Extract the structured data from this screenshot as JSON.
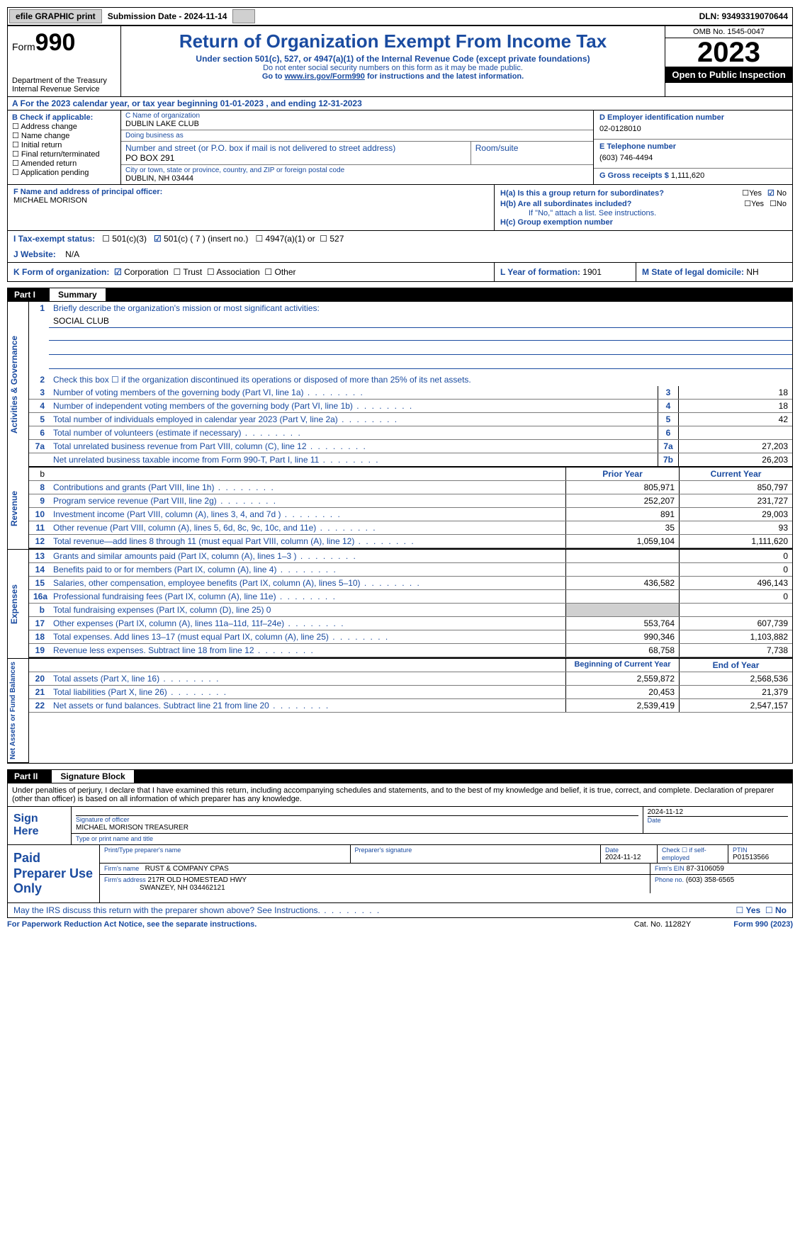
{
  "topbar": {
    "efile": "efile GRAPHIC print",
    "submission": "Submission Date - 2024-11-14",
    "dln": "DLN: 93493319070644"
  },
  "header": {
    "form_label": "Form",
    "form_num": "990",
    "dept": "Department of the Treasury Internal Revenue Service",
    "title": "Return of Organization Exempt From Income Tax",
    "subtitle": "Under section 501(c), 527, or 4947(a)(1) of the Internal Revenue Code (except private foundations)",
    "warn": "Do not enter social security numbers on this form as it may be made public.",
    "goto_pre": "Go to ",
    "goto_link": "www.irs.gov/Form990",
    "goto_post": " for instructions and the latest information.",
    "omb": "OMB No. 1545-0047",
    "year": "2023",
    "open": "Open to Public Inspection"
  },
  "row_a": "A For the 2023 calendar year, or tax year beginning 01-01-2023   , and ending 12-31-2023",
  "section_b": {
    "title": "B Check if applicable:",
    "items": [
      "Address change",
      "Name change",
      "Initial return",
      "Final return/terminated",
      "Amended return",
      "Application pending"
    ]
  },
  "section_c": {
    "name_lbl": "C Name of organization",
    "name": "DUBLIN LAKE CLUB",
    "dba_lbl": "Doing business as",
    "addr_lbl": "Number and street (or P.O. box if mail is not delivered to street address)",
    "room_lbl": "Room/suite",
    "addr": "PO BOX 291",
    "city_lbl": "City or town, state or province, country, and ZIP or foreign postal code",
    "city": "DUBLIN, NH  03444"
  },
  "section_d": {
    "ein_lbl": "D Employer identification number",
    "ein": "02-0128010",
    "tel_lbl": "E Telephone number",
    "tel": "(603) 746-4494",
    "gross_lbl": "G Gross receipts $",
    "gross": "1,111,620"
  },
  "section_f": {
    "lbl": "F  Name and address of principal officer:",
    "val": "MICHAEL MORISON"
  },
  "section_h": {
    "ha": "H(a)  Is this a group return for subordinates?",
    "hb": "H(b)  Are all subordinates included?",
    "hb_note": "If \"No,\" attach a list. See instructions.",
    "hc": "H(c)  Group exemption number"
  },
  "row_i": {
    "lbl": "I   Tax-exempt status:",
    "opts": [
      "501(c)(3)",
      "501(c) ( 7 ) (insert no.)",
      "4947(a)(1) or",
      "527"
    ]
  },
  "row_j": {
    "lbl": "J   Website:",
    "val": "N/A"
  },
  "row_k": {
    "lbl": "K Form of organization:",
    "opts": [
      "Corporation",
      "Trust",
      "Association",
      "Other"
    ],
    "l_lbl": "L Year of formation:",
    "l_val": "1901",
    "m_lbl": "M State of legal domicile:",
    "m_val": "NH"
  },
  "part1": {
    "num": "Part I",
    "title": "Summary"
  },
  "gov": {
    "l1": "Briefly describe the organization's mission or most significant activities:",
    "l1v": "SOCIAL CLUB",
    "l2": "Check this box ☐  if the organization discontinued its operations or disposed of more than 25% of its net assets.",
    "rows": [
      {
        "n": "3",
        "t": "Number of voting members of the governing body (Part VI, line 1a)",
        "b": "3",
        "v": "18"
      },
      {
        "n": "4",
        "t": "Number of independent voting members of the governing body (Part VI, line 1b)",
        "b": "4",
        "v": "18"
      },
      {
        "n": "5",
        "t": "Total number of individuals employed in calendar year 2023 (Part V, line 2a)",
        "b": "5",
        "v": "42"
      },
      {
        "n": "6",
        "t": "Total number of volunteers (estimate if necessary)",
        "b": "6",
        "v": ""
      },
      {
        "n": "7a",
        "t": "Total unrelated business revenue from Part VIII, column (C), line 12",
        "b": "7a",
        "v": "27,203"
      },
      {
        "n": "",
        "t": "Net unrelated business taxable income from Form 990-T, Part I, line 11",
        "b": "7b",
        "v": "26,203"
      }
    ]
  },
  "rev": {
    "hdr_py": "Prior Year",
    "hdr_cy": "Current Year",
    "rows": [
      {
        "n": "8",
        "t": "Contributions and grants (Part VIII, line 1h)",
        "py": "805,971",
        "cy": "850,797"
      },
      {
        "n": "9",
        "t": "Program service revenue (Part VIII, line 2g)",
        "py": "252,207",
        "cy": "231,727"
      },
      {
        "n": "10",
        "t": "Investment income (Part VIII, column (A), lines 3, 4, and 7d )",
        "py": "891",
        "cy": "29,003"
      },
      {
        "n": "11",
        "t": "Other revenue (Part VIII, column (A), lines 5, 6d, 8c, 9c, 10c, and 11e)",
        "py": "35",
        "cy": "93"
      },
      {
        "n": "12",
        "t": "Total revenue—add lines 8 through 11 (must equal Part VIII, column (A), line 12)",
        "py": "1,059,104",
        "cy": "1,111,620"
      }
    ]
  },
  "exp": {
    "rows": [
      {
        "n": "13",
        "t": "Grants and similar amounts paid (Part IX, column (A), lines 1–3 )",
        "py": "",
        "cy": "0"
      },
      {
        "n": "14",
        "t": "Benefits paid to or for members (Part IX, column (A), line 4)",
        "py": "",
        "cy": "0"
      },
      {
        "n": "15",
        "t": "Salaries, other compensation, employee benefits (Part IX, column (A), lines 5–10)",
        "py": "436,582",
        "cy": "496,143"
      },
      {
        "n": "16a",
        "t": "Professional fundraising fees (Part IX, column (A), line 11e)",
        "py": "",
        "cy": "0"
      },
      {
        "n": "b",
        "t": "Total fundraising expenses (Part IX, column (D), line 25) 0",
        "py": "",
        "cy": "",
        "shade": true
      },
      {
        "n": "17",
        "t": "Other expenses (Part IX, column (A), lines 11a–11d, 11f–24e)",
        "py": "553,764",
        "cy": "607,739"
      },
      {
        "n": "18",
        "t": "Total expenses. Add lines 13–17 (must equal Part IX, column (A), line 25)",
        "py": "990,346",
        "cy": "1,103,882"
      },
      {
        "n": "19",
        "t": "Revenue less expenses. Subtract line 18 from line 12",
        "py": "68,758",
        "cy": "7,738"
      }
    ]
  },
  "net": {
    "hdr_py": "Beginning of Current Year",
    "hdr_cy": "End of Year",
    "rows": [
      {
        "n": "20",
        "t": "Total assets (Part X, line 16)",
        "py": "2,559,872",
        "cy": "2,568,536"
      },
      {
        "n": "21",
        "t": "Total liabilities (Part X, line 26)",
        "py": "20,453",
        "cy": "21,379"
      },
      {
        "n": "22",
        "t": "Net assets or fund balances. Subtract line 21 from line 20",
        "py": "2,539,419",
        "cy": "2,547,157"
      }
    ]
  },
  "part2": {
    "num": "Part II",
    "title": "Signature Block"
  },
  "decl": "Under penalties of perjury, I declare that I have examined this return, including accompanying schedules and statements, and to the best of my knowledge and belief, it is true, correct, and complete. Declaration of preparer (other than officer) is based on all information of which preparer has any knowledge.",
  "sign": {
    "side": "Sign Here",
    "sig_lbl": "Signature of officer",
    "date_lbl": "Date",
    "date": "2024-11-12",
    "name": "MICHAEL MORISON  TREASURER",
    "name_lbl": "Type or print name and title"
  },
  "prep": {
    "side": "Paid Preparer Use Only",
    "r1": {
      "c1_lbl": "Print/Type preparer's name",
      "c2_lbl": "Preparer's signature",
      "c3_lbl": "Date",
      "c3": "2024-11-12",
      "c4_lbl": "Check ☐ if self-employed",
      "c5_lbl": "PTIN",
      "c5": "P01513566"
    },
    "r2": {
      "c1_lbl": "Firm's name",
      "c1": "RUST & COMPANY CPAS",
      "c2_lbl": "Firm's EIN",
      "c2": "87-3106059"
    },
    "r3": {
      "c1_lbl": "Firm's address",
      "c1a": "217R OLD HOMESTEAD HWY",
      "c1b": "SWANZEY, NH  034462121",
      "c2_lbl": "Phone no.",
      "c2": "(603) 358-6565"
    }
  },
  "footer": {
    "q": "May the IRS discuss this return with the preparer shown above? See Instructions.",
    "paperwork": "For Paperwork Reduction Act Notice, see the separate instructions.",
    "cat": "Cat. No. 11282Y",
    "form": "Form 990 (2023)"
  }
}
